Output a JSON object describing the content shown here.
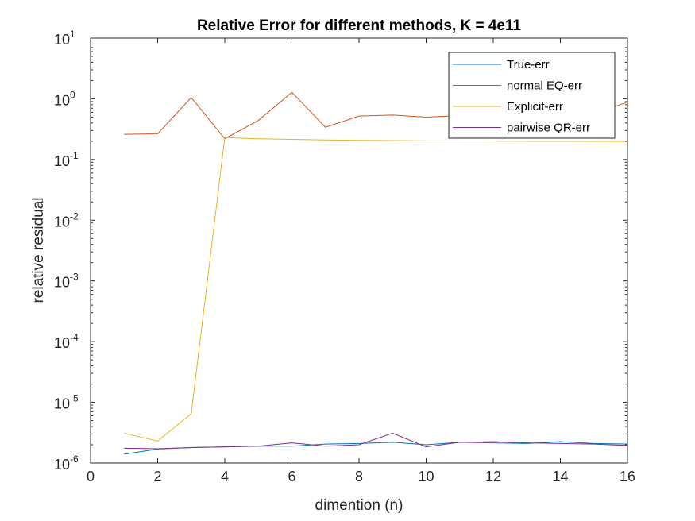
{
  "chart_data": {
    "type": "line",
    "title": "Relative Error for different methods, K = 4e11",
    "xlabel": "dimention (n)",
    "ylabel": "relative residual",
    "xlim": [
      0,
      16
    ],
    "ylim": [
      1e-06,
      10
    ],
    "yscale": "log",
    "grid": false,
    "legend_position": "top-right",
    "x_ticks": [
      0,
      2,
      4,
      6,
      8,
      10,
      12,
      14,
      16
    ],
    "x_tick_labels": [
      "0",
      "2",
      "4",
      "6",
      "8",
      "10",
      "12",
      "14",
      "16"
    ],
    "y_ticks": [
      1e-06,
      1e-05,
      0.0001,
      0.001,
      0.01,
      0.1,
      1,
      10
    ],
    "y_tick_labels": [
      {
        "base": "10",
        "exp": "-6"
      },
      {
        "base": "10",
        "exp": "-5"
      },
      {
        "base": "10",
        "exp": "-4"
      },
      {
        "base": "10",
        "exp": "-3"
      },
      {
        "base": "10",
        "exp": "-2"
      },
      {
        "base": "10",
        "exp": "-1"
      },
      {
        "base": "10",
        "exp": "0"
      },
      {
        "base": "10",
        "exp": "1"
      }
    ],
    "x": [
      1,
      2,
      3,
      4,
      5,
      6,
      7,
      8,
      9,
      10,
      11,
      12,
      13,
      14,
      15,
      16
    ],
    "series": [
      {
        "name": "True-err",
        "color": "#0072BD",
        "values": [
          1.4e-06,
          1.7e-06,
          1.8e-06,
          1.85e-06,
          1.9e-06,
          1.9e-06,
          2.05e-06,
          2.1e-06,
          2.2e-06,
          2e-06,
          2.2e-06,
          2.15e-06,
          2.1e-06,
          2.25e-06,
          2.1e-06,
          2.05e-06
        ]
      },
      {
        "name": "normal EQ-err",
        "color": "#D95319",
        "values": [
          0.26,
          0.265,
          1.05,
          0.22,
          0.44,
          1.28,
          0.34,
          0.52,
          0.54,
          0.5,
          0.53,
          0.55,
          0.6,
          0.56,
          0.57,
          0.88
        ]
      },
      {
        "name": "Explicit-err",
        "color": "#EDB120",
        "values": [
          3.1e-06,
          2.3e-06,
          6.5e-06,
          0.23,
          0.22,
          0.215,
          0.21,
          0.207,
          0.205,
          0.203,
          0.202,
          0.201,
          0.2,
          0.2,
          0.199,
          0.198
        ]
      },
      {
        "name": "pairwise QR-err",
        "color": "#7E2F8E",
        "values": [
          1.75e-06,
          1.72e-06,
          1.8e-06,
          1.85e-06,
          1.9e-06,
          2.15e-06,
          1.9e-06,
          2e-06,
          3.1e-06,
          1.85e-06,
          2.2e-06,
          2.25e-06,
          2.15e-06,
          2.1e-06,
          2.05e-06,
          1.95e-06
        ]
      }
    ]
  }
}
